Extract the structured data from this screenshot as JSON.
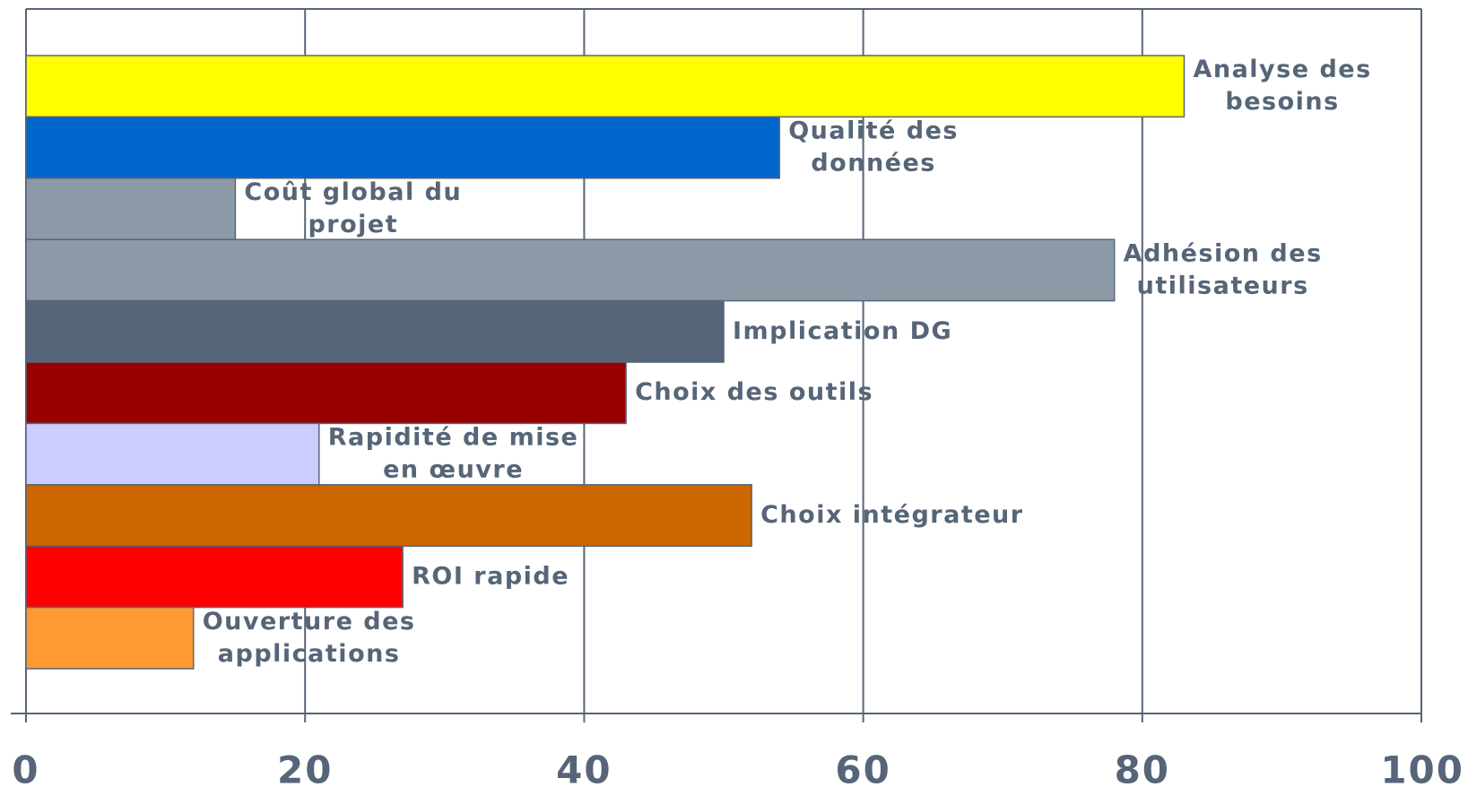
{
  "chart_data": {
    "type": "bar",
    "orientation": "horizontal",
    "categories": [
      [
        "Analyse des",
        "besoins"
      ],
      [
        "Qualité des",
        "données"
      ],
      [
        "Coût global du",
        "projet"
      ],
      [
        "Adhésion des",
        "utilisateurs"
      ],
      [
        "Implication DG"
      ],
      [
        "Choix des outils"
      ],
      [
        "Rapidité de mise",
        "en œuvre"
      ],
      [
        "Choix intégrateur"
      ],
      [
        "ROI rapide"
      ],
      [
        "Ouverture des",
        "applications"
      ]
    ],
    "values": [
      83,
      54,
      15,
      78,
      50,
      43,
      21,
      52,
      27,
      12
    ],
    "colors": [
      "#ffff00",
      "#0066cc",
      "#8c9aa8",
      "#8c9aa8",
      "#566578",
      "#990000",
      "#ccccff",
      "#cc6600",
      "#ff0000",
      "#ff9933"
    ],
    "xlim": [
      0,
      100
    ],
    "xticks": [
      0,
      20,
      40,
      60,
      80,
      100
    ],
    "grid": true
  }
}
